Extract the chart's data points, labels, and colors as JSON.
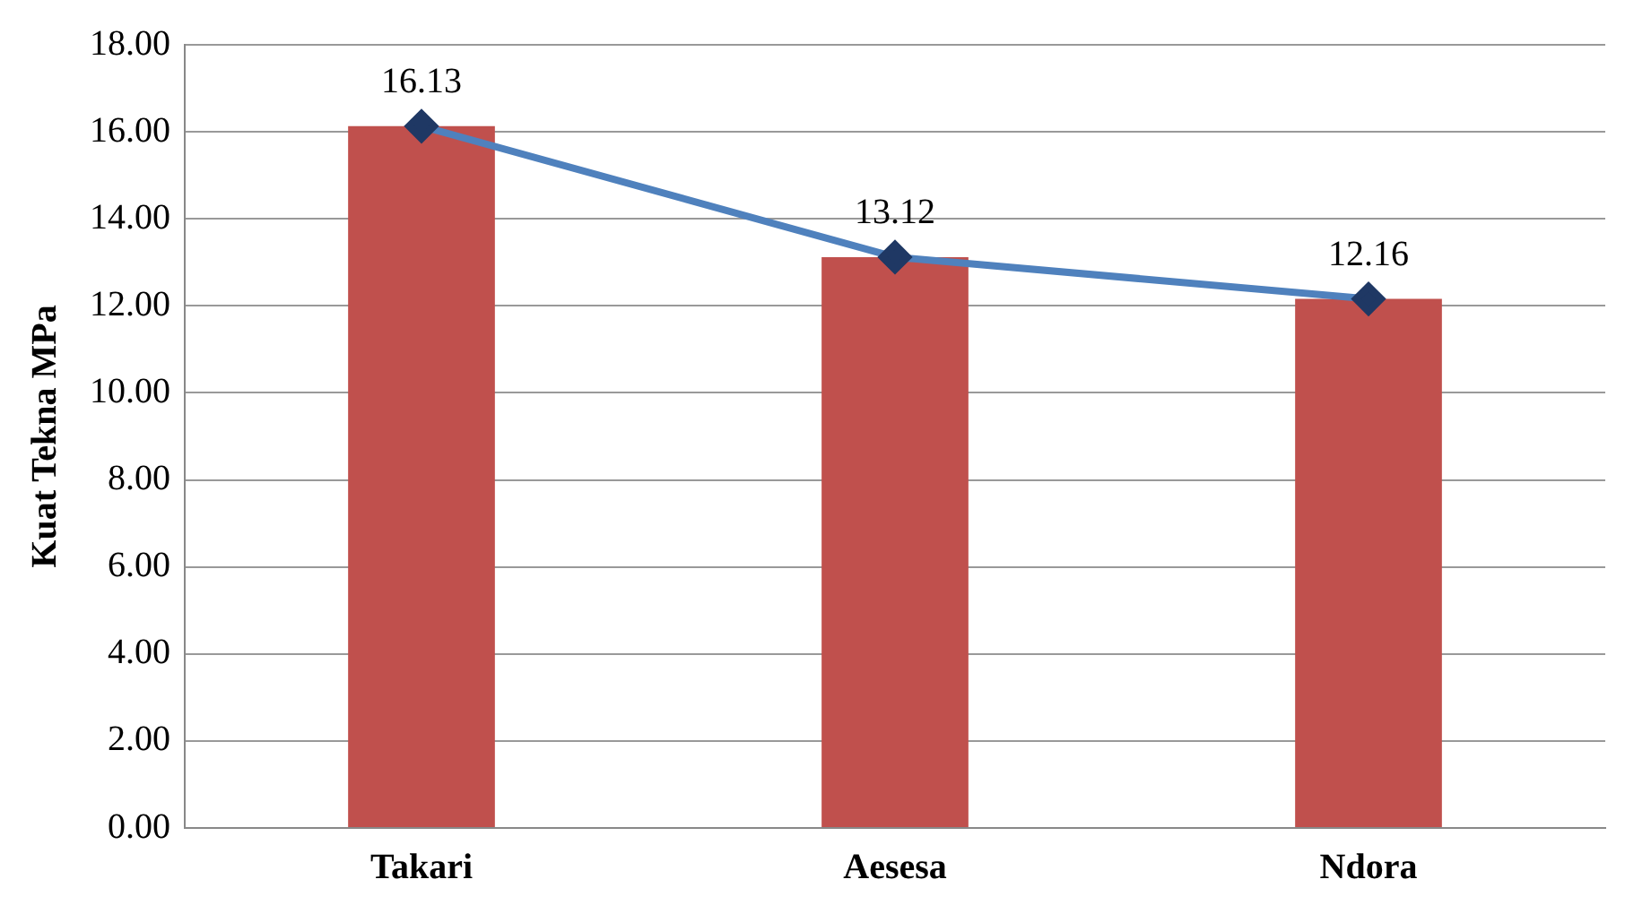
{
  "chart_data": {
    "type": "bar",
    "ylabel": "Kuat Tekna MPa",
    "categories": [
      "Takari",
      "Aesesa",
      "Ndora"
    ],
    "series": [
      {
        "color": "#c0504d",
        "values": [
          16.13,
          13.12,
          12.16
        ]
      },
      {
        "type": "line",
        "color": "#4f81bd",
        "colors": [
          "#1f3864",
          "#1f3864",
          "#1f3864"
        ],
        "marker": "diamond",
        "values": [
          16.13,
          13.12,
          12.16
        ],
        "value_labels": [
          "16.13",
          "13.12",
          "12.16"
        ]
      }
    ],
    "ylim": [
      0,
      18
    ],
    "yticks": [
      {
        "value": 0,
        "label": "0.00"
      },
      {
        "value": 2,
        "label": "2.00"
      },
      {
        "value": 4,
        "label": "4.00"
      },
      {
        "value": 6,
        "label": "6.00"
      },
      {
        "value": 8,
        "label": "8.00"
      },
      {
        "value": 10,
        "label": "10.00"
      },
      {
        "value": 12,
        "label": "12.00"
      },
      {
        "value": 14,
        "label": "14.00"
      },
      {
        "value": 16,
        "label": "16.00"
      },
      {
        "value": 18,
        "label": "18.00"
      }
    ],
    "grid": "y",
    "legend": false
  }
}
